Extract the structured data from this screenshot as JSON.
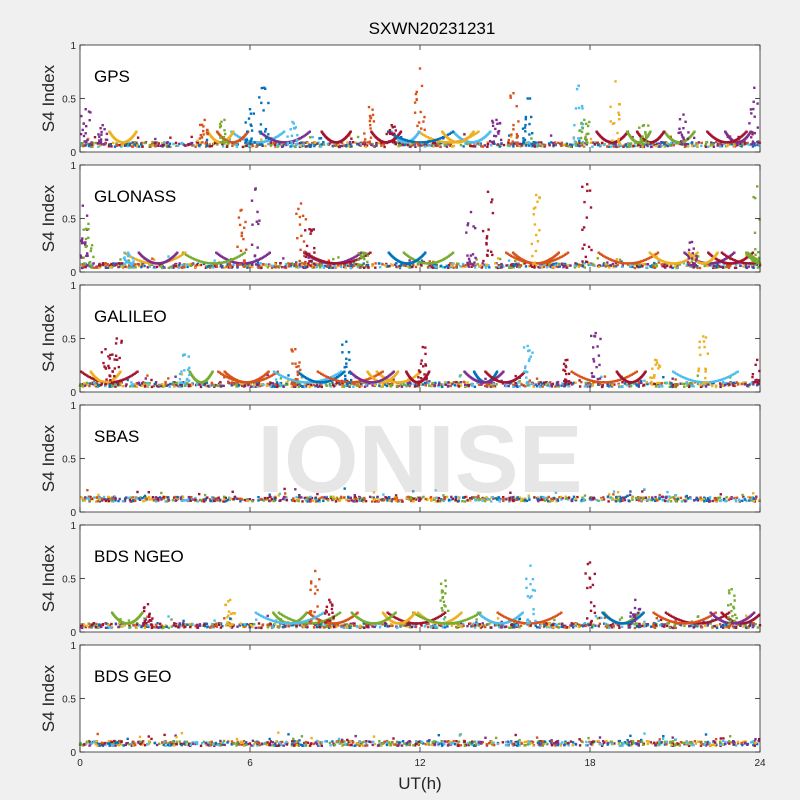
{
  "chart_data": {
    "type": "scatter",
    "title": "SXWN20231231",
    "xlabel": "UT(h)",
    "ylabel": "S4 Index",
    "watermark": "IONISE",
    "xlim": [
      0,
      24
    ],
    "ylim": [
      0,
      1
    ],
    "xticks": [
      "0",
      "6",
      "12",
      "18",
      "24"
    ],
    "yticks": [
      "0",
      "0.5",
      "1"
    ],
    "series_colors": [
      "#0072BD",
      "#D95319",
      "#EDB120",
      "#7E2F8E",
      "#77AC30",
      "#4DBEEE",
      "#A2142F"
    ],
    "panels": [
      {
        "label": "GPS",
        "baseline": 0.07,
        "peaks": [
          {
            "x": 0.2,
            "y": 0.4,
            "s": 3
          },
          {
            "x": 0.8,
            "y": 0.25,
            "s": 3
          },
          {
            "x": 4.4,
            "y": 0.3,
            "s": 1
          },
          {
            "x": 5.1,
            "y": 0.3,
            "s": 4
          },
          {
            "x": 6.0,
            "y": 0.4,
            "s": 0
          },
          {
            "x": 6.5,
            "y": 0.6,
            "s": 0
          },
          {
            "x": 7.5,
            "y": 0.28,
            "s": 5
          },
          {
            "x": 10.2,
            "y": 0.42,
            "s": 1
          },
          {
            "x": 11.0,
            "y": 0.25,
            "s": 6
          },
          {
            "x": 12.0,
            "y": 0.78,
            "s": 1
          },
          {
            "x": 14.7,
            "y": 0.3,
            "s": 3
          },
          {
            "x": 15.3,
            "y": 0.55,
            "s": 1
          },
          {
            "x": 15.8,
            "y": 0.5,
            "s": 0
          },
          {
            "x": 17.6,
            "y": 0.62,
            "s": 5
          },
          {
            "x": 17.8,
            "y": 0.3,
            "s": 4
          },
          {
            "x": 18.9,
            "y": 0.66,
            "s": 2
          },
          {
            "x": 19.9,
            "y": 0.25,
            "s": 4
          },
          {
            "x": 21.3,
            "y": 0.35,
            "s": 3
          },
          {
            "x": 23.8,
            "y": 0.6,
            "s": 3
          }
        ]
      },
      {
        "label": "GLONASS",
        "baseline": 0.06,
        "peaks": [
          {
            "x": 0.1,
            "y": 0.62,
            "s": 3
          },
          {
            "x": 0.3,
            "y": 0.45,
            "s": 4
          },
          {
            "x": 1.7,
            "y": 0.18,
            "s": 5
          },
          {
            "x": 5.7,
            "y": 0.58,
            "s": 1
          },
          {
            "x": 6.2,
            "y": 0.78,
            "s": 3
          },
          {
            "x": 7.8,
            "y": 0.64,
            "s": 1
          },
          {
            "x": 8.1,
            "y": 0.4,
            "s": 6
          },
          {
            "x": 10.0,
            "y": 0.18,
            "s": 4
          },
          {
            "x": 13.8,
            "y": 0.56,
            "s": 3
          },
          {
            "x": 14.4,
            "y": 0.75,
            "s": 6
          },
          {
            "x": 16.1,
            "y": 0.72,
            "s": 2
          },
          {
            "x": 17.9,
            "y": 0.82,
            "s": 6
          },
          {
            "x": 21.6,
            "y": 0.28,
            "s": 3
          },
          {
            "x": 23.9,
            "y": 0.8,
            "s": 4
          }
        ]
      },
      {
        "label": "GALILEO",
        "baseline": 0.07,
        "peaks": [
          {
            "x": 0.9,
            "y": 0.4,
            "s": 6
          },
          {
            "x": 1.3,
            "y": 0.5,
            "s": 6
          },
          {
            "x": 3.7,
            "y": 0.35,
            "s": 5
          },
          {
            "x": 7.6,
            "y": 0.4,
            "s": 1
          },
          {
            "x": 9.4,
            "y": 0.47,
            "s": 0
          },
          {
            "x": 12.1,
            "y": 0.42,
            "s": 6
          },
          {
            "x": 15.8,
            "y": 0.43,
            "s": 5
          },
          {
            "x": 17.2,
            "y": 0.3,
            "s": 6
          },
          {
            "x": 18.2,
            "y": 0.55,
            "s": 3
          },
          {
            "x": 20.3,
            "y": 0.3,
            "s": 2
          },
          {
            "x": 22.0,
            "y": 0.52,
            "s": 2
          },
          {
            "x": 23.9,
            "y": 0.3,
            "s": 6
          }
        ]
      },
      {
        "label": "SBAS",
        "baseline": 0.12,
        "peaks": []
      },
      {
        "label": "BDS NGEO",
        "baseline": 0.06,
        "peaks": [
          {
            "x": 2.4,
            "y": 0.26,
            "s": 6
          },
          {
            "x": 5.3,
            "y": 0.3,
            "s": 2
          },
          {
            "x": 8.3,
            "y": 0.57,
            "s": 1
          },
          {
            "x": 8.8,
            "y": 0.3,
            "s": 6
          },
          {
            "x": 12.9,
            "y": 0.48,
            "s": 4
          },
          {
            "x": 15.9,
            "y": 0.62,
            "s": 5
          },
          {
            "x": 18.0,
            "y": 0.65,
            "s": 6
          },
          {
            "x": 19.6,
            "y": 0.3,
            "s": 3
          },
          {
            "x": 23.0,
            "y": 0.4,
            "s": 4
          }
        ]
      },
      {
        "label": "BDS GEO",
        "baseline": 0.08,
        "peaks": []
      }
    ]
  }
}
